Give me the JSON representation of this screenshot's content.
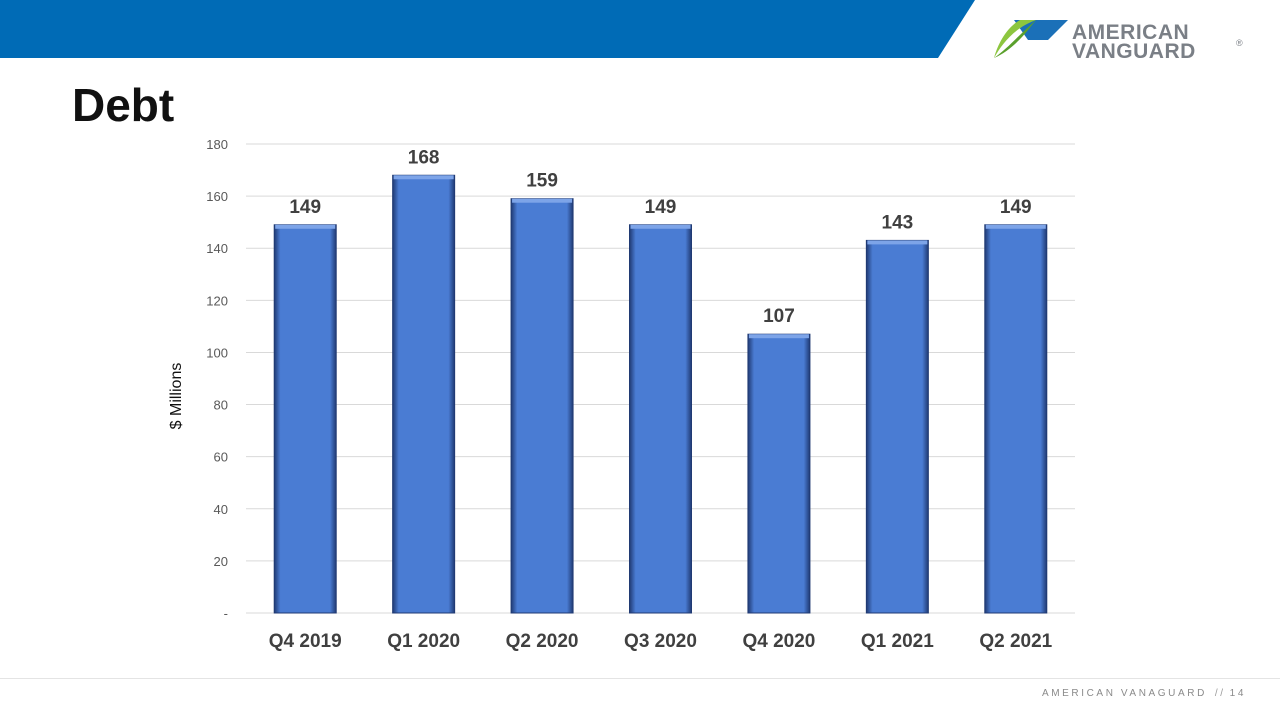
{
  "slide": {
    "title": "Debt",
    "footer_company": "AMERICAN VANAGUARD",
    "footer_separator": "//",
    "page_number": "14"
  },
  "logo": {
    "line1": "AMERICAN",
    "line2": "VANGUARD",
    "registered": "®",
    "icon": "american-vanguard-logo-icon"
  },
  "colors": {
    "banner": "#006bb6",
    "bar": "#4a7cd3",
    "bar_top": "#7da4e8",
    "bar_edge": "#203a73",
    "logo_green": "#8dc63f",
    "logo_blue": "#1b70b8"
  },
  "chart_data": {
    "type": "bar",
    "categories": [
      "Q4 2019",
      "Q1 2020",
      "Q2 2020",
      "Q3 2020",
      "Q4 2020",
      "Q1 2021",
      "Q2 2021"
    ],
    "values": [
      149,
      168,
      159,
      149,
      107,
      143,
      149
    ],
    "data_labels": [
      "149",
      "168",
      "159",
      "149",
      "107",
      "143",
      "149"
    ],
    "title": "",
    "xlabel": "",
    "ylabel": "$ Millions",
    "ylim": [
      0,
      180
    ],
    "yticks": [
      0,
      20,
      40,
      60,
      80,
      100,
      120,
      140,
      160,
      180
    ],
    "ytick_labels": [
      "-",
      "20",
      "40",
      "60",
      "80",
      "100",
      "120",
      "140",
      "160",
      "180"
    ],
    "grid": true,
    "legend": "none"
  }
}
